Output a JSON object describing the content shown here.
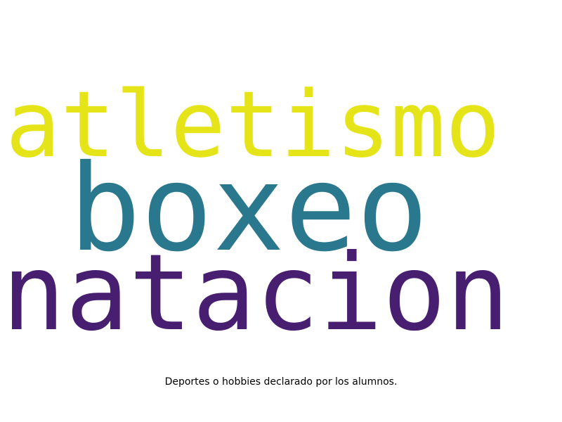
{
  "words": [
    {
      "text": "atletismo",
      "color": "#e5e419"
    },
    {
      "text": "boxeo",
      "color": "#2a788e"
    },
    {
      "text": "natacion",
      "color": "#481f70"
    }
  ],
  "caption": "Deportes o hobbies declarado por los alumnos."
}
